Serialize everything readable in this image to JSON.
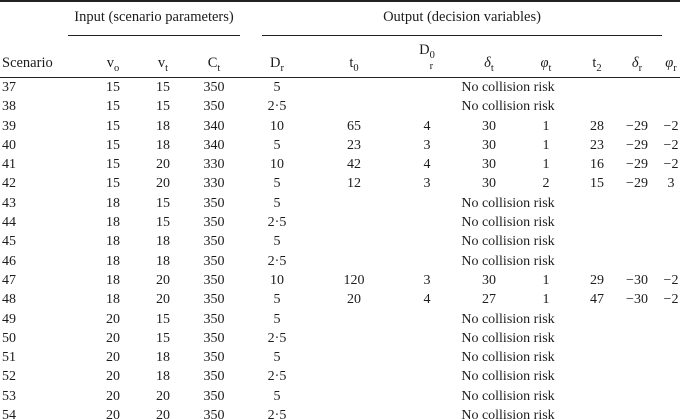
{
  "table": {
    "input_group": "Input (scenario parameters)",
    "output_group": "Output (decision variables)",
    "scenario_header": "Scenario",
    "no_collision_text": "No collision risk",
    "colors": {
      "text": "#1c1c1c",
      "rule": "#222222",
      "background": "#ffffff"
    },
    "input_columns": [
      {
        "base": "v",
        "sub": "o"
      },
      {
        "base": "v",
        "sub": "t"
      },
      {
        "base": "C",
        "sub": "t"
      },
      {
        "base": "D",
        "sub": "r"
      }
    ],
    "output_columns": [
      {
        "base": "t",
        "sub": "0"
      },
      {
        "base": "D",
        "sub": "r",
        "sup": "0"
      },
      {
        "base": "δ",
        "sub": "t"
      },
      {
        "base": "φ",
        "sub": "t"
      },
      {
        "base": "t",
        "sub": "2"
      },
      {
        "base": "δ",
        "sub": "r"
      },
      {
        "base": "φ",
        "sub": "r"
      }
    ],
    "rows": [
      {
        "scenario": "37",
        "vo": "15",
        "vt": "15",
        "ct": "350",
        "dr": "5",
        "output": null
      },
      {
        "scenario": "38",
        "vo": "15",
        "vt": "15",
        "ct": "350",
        "dr": "2·5",
        "output": null
      },
      {
        "scenario": "39",
        "vo": "15",
        "vt": "18",
        "ct": "340",
        "dr": "10",
        "output": [
          "65",
          "4",
          "30",
          "1",
          "28",
          "−29",
          "−2"
        ]
      },
      {
        "scenario": "40",
        "vo": "15",
        "vt": "18",
        "ct": "340",
        "dr": "5",
        "output": [
          "23",
          "3",
          "30",
          "1",
          "23",
          "−29",
          "−2"
        ]
      },
      {
        "scenario": "41",
        "vo": "15",
        "vt": "20",
        "ct": "330",
        "dr": "10",
        "output": [
          "42",
          "4",
          "30",
          "1",
          "16",
          "−29",
          "−2"
        ]
      },
      {
        "scenario": "42",
        "vo": "15",
        "vt": "20",
        "ct": "330",
        "dr": "5",
        "output": [
          "12",
          "3",
          "30",
          "2",
          "15",
          "−29",
          "3"
        ]
      },
      {
        "scenario": "43",
        "vo": "18",
        "vt": "15",
        "ct": "350",
        "dr": "5",
        "output": null
      },
      {
        "scenario": "44",
        "vo": "18",
        "vt": "15",
        "ct": "350",
        "dr": "2·5",
        "output": null
      },
      {
        "scenario": "45",
        "vo": "18",
        "vt": "18",
        "ct": "350",
        "dr": "5",
        "output": null
      },
      {
        "scenario": "46",
        "vo": "18",
        "vt": "18",
        "ct": "350",
        "dr": "2·5",
        "output": null
      },
      {
        "scenario": "47",
        "vo": "18",
        "vt": "20",
        "ct": "350",
        "dr": "10",
        "output": [
          "120",
          "3",
          "30",
          "1",
          "29",
          "−30",
          "−2"
        ]
      },
      {
        "scenario": "48",
        "vo": "18",
        "vt": "20",
        "ct": "350",
        "dr": "5",
        "output": [
          "20",
          "4",
          "27",
          "1",
          "47",
          "−30",
          "−2"
        ]
      },
      {
        "scenario": "49",
        "vo": "20",
        "vt": "15",
        "ct": "350",
        "dr": "5",
        "output": null
      },
      {
        "scenario": "50",
        "vo": "20",
        "vt": "15",
        "ct": "350",
        "dr": "2·5",
        "output": null
      },
      {
        "scenario": "51",
        "vo": "20",
        "vt": "18",
        "ct": "350",
        "dr": "5",
        "output": null
      },
      {
        "scenario": "52",
        "vo": "20",
        "vt": "18",
        "ct": "350",
        "dr": "2·5",
        "output": null
      },
      {
        "scenario": "53",
        "vo": "20",
        "vt": "20",
        "ct": "350",
        "dr": "5",
        "output": null
      },
      {
        "scenario": "54",
        "vo": "20",
        "vt": "20",
        "ct": "350",
        "dr": "2·5",
        "output": null
      }
    ]
  }
}
